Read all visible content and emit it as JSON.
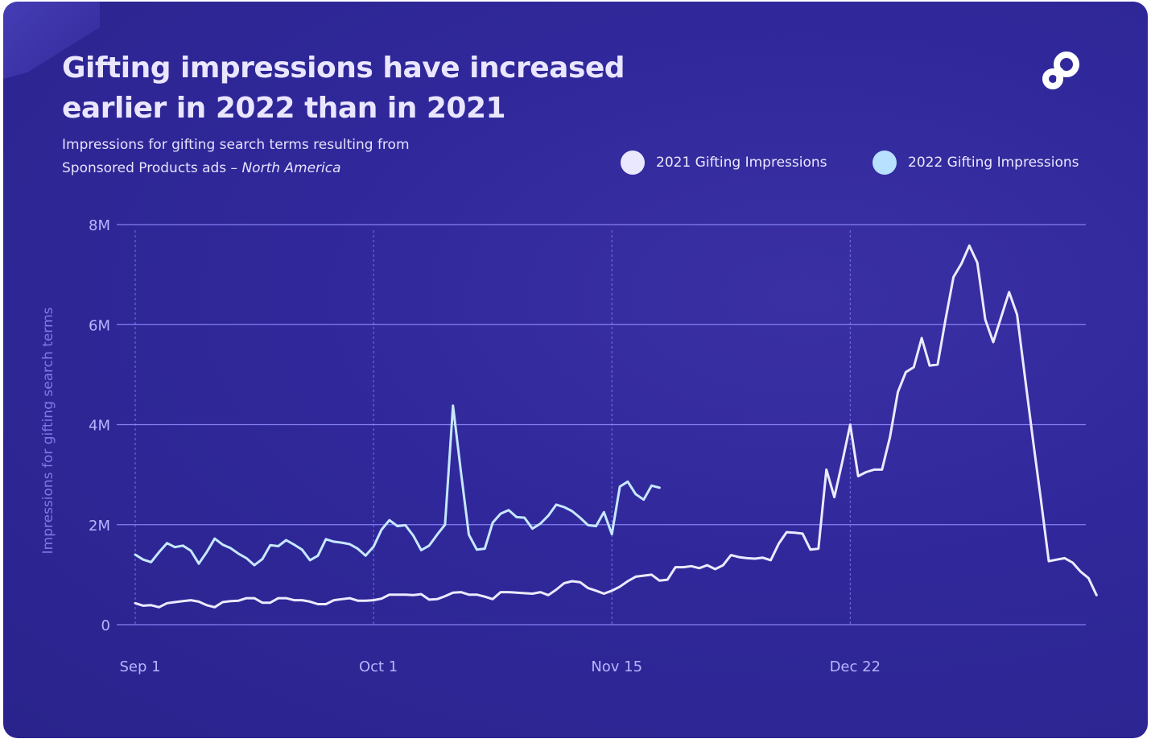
{
  "title_line1": "Gifting impressions have increased",
  "title_line2": "earlier in 2022 than in 2021",
  "subtitle_line1": "Impressions for gifting search terms resulting from",
  "subtitle_line2_plain": "Sponsored Products ads – ",
  "subtitle_line2_italic": "North America",
  "legend": [
    {
      "label": "2021 Gifting Impressions",
      "color": "#eae8ff"
    },
    {
      "label": "2022 Gifting Impressions",
      "color": "#b8e0ff"
    }
  ],
  "colors": {
    "background": "#2f2898",
    "gridline": "#8f8aff",
    "axis_text": "#b8b4ff",
    "line_2021": "#eceaff",
    "line_2022": "#c6e8ff"
  },
  "logo_icon": "brand-p-logo-icon",
  "chart_data": {
    "type": "line",
    "title": "Gifting impressions have increased earlier in 2022 than in 2021",
    "ylabel": "Impressions for gifting search terms",
    "xlabel": "",
    "ylim": [
      0,
      8000000
    ],
    "yticks": [
      0,
      2000000,
      4000000,
      6000000,
      8000000
    ],
    "ytick_labels": [
      "0",
      "2M",
      "4M",
      "6M",
      "8M"
    ],
    "xtick_labels": [
      "Sep 1",
      "Oct 1",
      "Nov 15",
      "Dec 22"
    ],
    "xtick_index": [
      0,
      30,
      60,
      90
    ],
    "grid": true,
    "legend_position": "top-right",
    "series": [
      {
        "name": "2021 Gifting Impressions",
        "values": [
          430000,
          380000,
          390000,
          350000,
          430000,
          450000,
          470000,
          490000,
          460000,
          390000,
          350000,
          450000,
          470000,
          480000,
          530000,
          530000,
          440000,
          440000,
          530000,
          530000,
          490000,
          490000,
          460000,
          410000,
          410000,
          490000,
          510000,
          530000,
          480000,
          480000,
          490000,
          520000,
          600000,
          600000,
          600000,
          590000,
          610000,
          500000,
          510000,
          570000,
          640000,
          650000,
          600000,
          600000,
          560000,
          510000,
          650000,
          650000,
          640000,
          630000,
          620000,
          650000,
          590000,
          700000,
          830000,
          870000,
          850000,
          730000,
          680000,
          620000,
          680000,
          760000,
          870000,
          960000,
          980000,
          1000000,
          880000,
          900000,
          1150000,
          1150000,
          1170000,
          1130000,
          1190000,
          1110000,
          1190000,
          1390000,
          1350000,
          1330000,
          1320000,
          1340000,
          1290000,
          1620000,
          1850000,
          1840000,
          1820000,
          1500000,
          1520000,
          3100000,
          2550000,
          3250000,
          4000000,
          2970000,
          3050000,
          3100000,
          3100000,
          3750000,
          4650000,
          5050000,
          5150000,
          5730000,
          5180000,
          5200000,
          6100000,
          6950000,
          7220000,
          7580000,
          7240000,
          6100000,
          5650000,
          6150000,
          6650000,
          6200000,
          4950000,
          3700000,
          2500000,
          1270000,
          1300000,
          1330000,
          1240000,
          1060000,
          930000,
          590000
        ]
      },
      {
        "name": "2022 Gifting Impressions",
        "values": [
          1400000,
          1300000,
          1250000,
          1450000,
          1630000,
          1550000,
          1580000,
          1480000,
          1220000,
          1450000,
          1720000,
          1600000,
          1530000,
          1420000,
          1330000,
          1190000,
          1310000,
          1590000,
          1570000,
          1690000,
          1600000,
          1500000,
          1290000,
          1380000,
          1710000,
          1660000,
          1640000,
          1610000,
          1520000,
          1380000,
          1560000,
          1900000,
          2090000,
          1970000,
          1990000,
          1780000,
          1490000,
          1580000,
          1800000,
          2000000,
          4380000,
          3050000,
          1800000,
          1500000,
          1520000,
          2040000,
          2220000,
          2290000,
          2150000,
          2140000,
          1920000,
          2020000,
          2180000,
          2400000,
          2350000,
          2270000,
          2140000,
          1990000,
          1970000,
          2250000,
          1810000,
          2760000,
          2860000,
          2610000,
          2500000,
          2780000,
          2740000
        ]
      }
    ]
  }
}
